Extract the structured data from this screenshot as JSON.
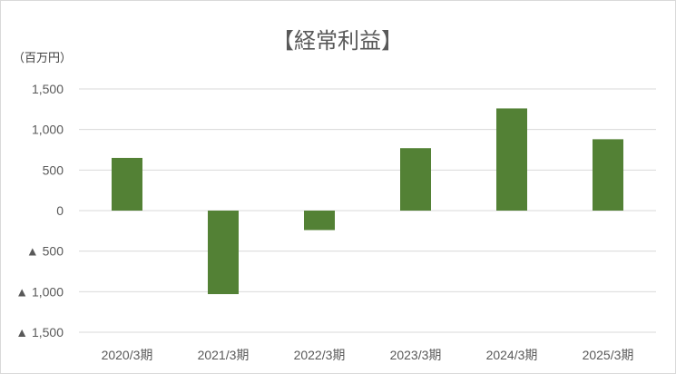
{
  "chart_data": {
    "type": "bar",
    "title": "【経常利益】",
    "unit_label": "（百万円）",
    "categories": [
      "2020/3期",
      "2021/3期",
      "2022/3期",
      "2023/3期",
      "2024/3期",
      "2025/3期"
    ],
    "values": [
      650,
      -1030,
      -240,
      770,
      1260,
      880
    ],
    "ylim": [
      -1500,
      1500
    ],
    "yticks": [
      1500,
      1000,
      500,
      0,
      -500,
      -1000,
      -1500
    ],
    "ytick_labels": [
      "1,500",
      "1,000",
      "500",
      "0",
      "▲ 500",
      "▲ 1,000",
      "▲ 1,500"
    ],
    "bar_color": "#538135",
    "grid": true,
    "legend": "none"
  }
}
